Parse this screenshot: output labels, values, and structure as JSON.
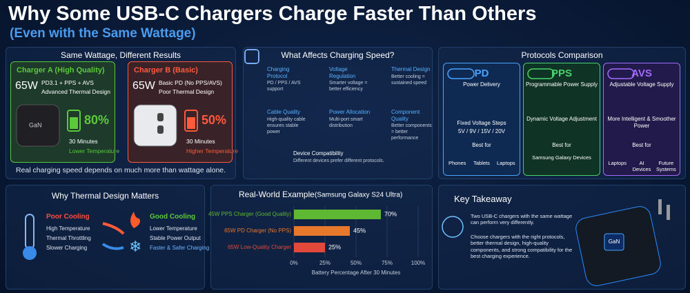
{
  "header": {
    "title": "Why Some USB-C Chargers Charge Faster Than Others",
    "subtitle": "(Even with the Same Wattage)"
  },
  "same_wattage": {
    "title": "Same Wattage, Different Results",
    "charger_a": {
      "name": "Charger A (High Quality)",
      "wattage": "65W",
      "features": [
        "PD3.1 + PPS + AVS",
        "Advanced Thermal Design"
      ],
      "badge": "GaN",
      "percent": "80%",
      "time": "30 Minutes",
      "temperature": "Lower Temperature"
    },
    "charger_b": {
      "name": "Charger B (Basic)",
      "wattage": "65W",
      "features": [
        "Basic PD (No PPS/AVS)",
        "Poor Thermal Design"
      ],
      "percent": "50%",
      "time": "30 Minutes",
      "temperature": "Higher Temperature"
    },
    "note": "Real charging speed depends on much more than wattage alone."
  },
  "factors": {
    "title": "What Affects Charging Speed?",
    "items": [
      {
        "title": "Charging Protocol",
        "text": "PD / PPS / AVS support"
      },
      {
        "title": "Voltage Regulation",
        "text": "Smarter voltage = better efficiency"
      },
      {
        "title": "Thermal Design",
        "text": "Better cooling = sustained speed"
      },
      {
        "title": "Cable Quality",
        "text": "High-quality cable ensures stable power"
      },
      {
        "title": "Power Allocation",
        "text": "Multi-port smart distribution"
      },
      {
        "title": "Component Quality",
        "text": "Better components = better performance"
      },
      {
        "title": "Device Compatibility",
        "text": "Different devices prefer different protocols."
      }
    ]
  },
  "protocols": {
    "title": "Protocols Comparison",
    "columns": [
      {
        "name": "PD",
        "full": "Power Delivery",
        "feature": "Fixed Voltage Steps",
        "detail": "5V / 9V / 15V / 20V",
        "best_for_label": "Best for",
        "best_for": [
          "Phones",
          "Tablets",
          "Laptops"
        ]
      },
      {
        "name": "PPS",
        "full": "Programmable Power Supply",
        "feature": "Dynamic Voltage Adjustment",
        "best_for_label": "Best for",
        "best_for": [
          "Samsung Galaxy Devices"
        ]
      },
      {
        "name": "AVS",
        "full": "Adjustable Voltage Supply",
        "feature": "More Intelligent & Smoother Power",
        "best_for_label": "Best for",
        "best_for": [
          "Laptops",
          "AI Devices",
          "Future Systems"
        ]
      }
    ]
  },
  "thermal": {
    "title": "Why Thermal Design Matters",
    "poor": {
      "title": "Poor Cooling",
      "items": [
        "High Temperature",
        "Thermal Throttling",
        "Slower Charging"
      ]
    },
    "good": {
      "title": "Good Cooling",
      "items": [
        "Lower Temperature",
        "Stable Power Output",
        "Faster & Safer Charging"
      ]
    }
  },
  "real_world": {
    "type": "bar",
    "title": "Real-World Example",
    "subtitle": "(Samsung Galaxy S24 Ultra)",
    "categories": [
      "45W PPS Charger (Good Quality)",
      "65W PD Charger (No PPS)",
      "65W Low-Quality Charger"
    ],
    "values": [
      70,
      45,
      25
    ],
    "value_labels": [
      "70%",
      "45%",
      "25%"
    ],
    "colors": [
      "#5fb832",
      "#e8782c",
      "#e2493b"
    ],
    "xlim": [
      0,
      100
    ],
    "xticks": [
      {
        "value": 0,
        "label": "0%"
      },
      {
        "value": 25,
        "label": "25%"
      },
      {
        "value": 50,
        "label": "50%"
      },
      {
        "value": 75,
        "label": "75%"
      },
      {
        "value": 100,
        "label": "100%"
      }
    ],
    "xlabel": "Battery Percentage After 30 Minutes"
  },
  "takeaway": {
    "title": "Key Takeaway",
    "paragraphs": [
      "Two USB-C chargers with the same wattage can perform very differently.",
      "Choose chargers with the right protocols, better thermal design, high-quality components, and strong compatibility for the best charging experience."
    ],
    "badge": "GaN"
  }
}
